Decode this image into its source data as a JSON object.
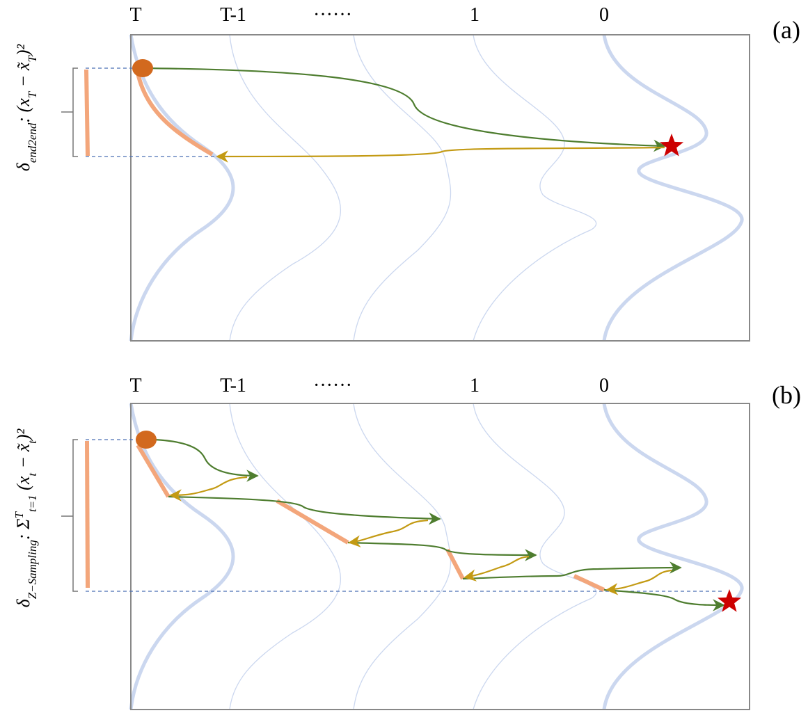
{
  "panels": [
    {
      "label": "(a)",
      "columns": [
        "T",
        "T-1",
        "······",
        "1",
        "0"
      ],
      "y_label": [
        {
          "text": "δ",
          "pos": "base"
        },
        {
          "text": "end2end",
          "pos": "sub"
        },
        {
          "text": ": (x",
          "pos": "base"
        },
        {
          "text": "T",
          "pos": "sub"
        },
        {
          "text": " − x̃",
          "pos": "base"
        },
        {
          "text": "T",
          "pos": "sub"
        },
        {
          "text": ")²",
          "pos": "base"
        }
      ]
    },
    {
      "label": "(b)",
      "columns": [
        "T",
        "T-1",
        "······",
        "1",
        "0"
      ],
      "y_label": [
        {
          "text": "δ",
          "pos": "base"
        },
        {
          "text": "Z−Sampling",
          "pos": "sub"
        },
        {
          "text": ": Σ",
          "pos": "base"
        },
        {
          "text": "T",
          "pos": "super"
        },
        {
          "text": "t=1",
          "pos": "sub"
        },
        {
          "text": " (x",
          "pos": "base"
        },
        {
          "text": "t",
          "pos": "sub"
        },
        {
          "text": " − x̃",
          "pos": "base"
        },
        {
          "text": "t",
          "pos": "sub"
        },
        {
          "text": ")²",
          "pos": "base"
        }
      ]
    }
  ]
}
